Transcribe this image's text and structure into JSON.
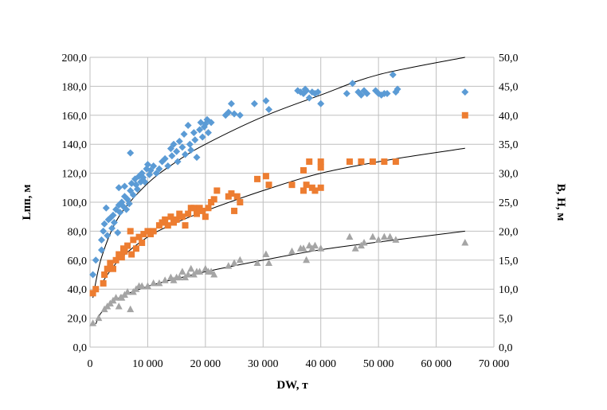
{
  "chart_data": {
    "type": "scatter",
    "xlabel": "DW, т",
    "ylabel_left": "Lпп, м",
    "ylabel_right": "B, H, м",
    "xlim": [
      0,
      70000
    ],
    "ylim_left": [
      0,
      200
    ],
    "ylim_right": [
      0,
      50
    ],
    "grid": "horizontal and vertical",
    "legend": "none",
    "x_ticks": [
      "0",
      "10 000",
      "20 000",
      "30 000",
      "40 000",
      "50 000",
      "60 000",
      "70 000"
    ],
    "y_left_ticks": [
      "0,0",
      "20,0",
      "40,0",
      "60,0",
      "80,0",
      "100,0",
      "120,0",
      "140,0",
      "160,0",
      "180,0",
      "200,0"
    ],
    "y_right_ticks": [
      "0,0",
      "5,0",
      "10,0",
      "15,0",
      "20,0",
      "25,0",
      "30,0",
      "35,0",
      "40,0",
      "45,0",
      "50,0"
    ],
    "series": [
      {
        "marker": "diamond",
        "color": "#5B9BD5",
        "axis": "left",
        "points": [
          [
            500,
            50
          ],
          [
            1000,
            60
          ],
          [
            2000,
            67
          ],
          [
            2000,
            74
          ],
          [
            2300,
            80
          ],
          [
            2500,
            85
          ],
          [
            2800,
            96
          ],
          [
            3000,
            77
          ],
          [
            3200,
            88
          ],
          [
            3500,
            89
          ],
          [
            3800,
            82
          ],
          [
            4000,
            91
          ],
          [
            4200,
            86
          ],
          [
            4500,
            95
          ],
          [
            4800,
            79
          ],
          [
            5000,
            98
          ],
          [
            5000,
            110
          ],
          [
            5200,
            93
          ],
          [
            5500,
            100
          ],
          [
            5800,
            97
          ],
          [
            6000,
            111
          ],
          [
            6000,
            104
          ],
          [
            6300,
            95
          ],
          [
            6500,
            102
          ],
          [
            6800,
            99
          ],
          [
            7000,
            134
          ],
          [
            7000,
            108
          ],
          [
            7200,
            113
          ],
          [
            7500,
            105
          ],
          [
            7800,
            116
          ],
          [
            8000,
            112
          ],
          [
            8200,
            109
          ],
          [
            8500,
            118
          ],
          [
            8800,
            114
          ],
          [
            9000,
            120
          ],
          [
            9200,
            117
          ],
          [
            9500,
            114
          ],
          [
            9800,
            123
          ],
          [
            10000,
            126
          ],
          [
            10300,
            119
          ],
          [
            10500,
            122
          ],
          [
            11000,
            125
          ],
          [
            11500,
            120
          ],
          [
            12000,
            123
          ],
          [
            12500,
            128
          ],
          [
            13000,
            130
          ],
          [
            13500,
            125
          ],
          [
            14000,
            137
          ],
          [
            14200,
            132
          ],
          [
            14500,
            140
          ],
          [
            15000,
            135
          ],
          [
            15200,
            128
          ],
          [
            15500,
            142
          ],
          [
            16000,
            138
          ],
          [
            16300,
            147
          ],
          [
            16500,
            133
          ],
          [
            17000,
            153
          ],
          [
            17300,
            140
          ],
          [
            17500,
            136
          ],
          [
            18000,
            148
          ],
          [
            18200,
            143
          ],
          [
            18500,
            131
          ],
          [
            19000,
            150
          ],
          [
            19200,
            155
          ],
          [
            19500,
            145
          ],
          [
            19800,
            152
          ],
          [
            20000,
            154
          ],
          [
            20300,
            157
          ],
          [
            20500,
            148
          ],
          [
            21000,
            155
          ],
          [
            23500,
            160
          ],
          [
            24000,
            162
          ],
          [
            24500,
            168
          ],
          [
            25000,
            161
          ],
          [
            26000,
            160
          ],
          [
            28500,
            168
          ],
          [
            30500,
            170
          ],
          [
            31000,
            164
          ],
          [
            36000,
            177
          ],
          [
            36500,
            176
          ],
          [
            37000,
            175
          ],
          [
            37300,
            178
          ],
          [
            37500,
            177
          ],
          [
            38000,
            172
          ],
          [
            38500,
            176
          ],
          [
            39000,
            175
          ],
          [
            39500,
            176
          ],
          [
            40000,
            168
          ],
          [
            44500,
            175
          ],
          [
            45500,
            182
          ],
          [
            46500,
            176
          ],
          [
            47000,
            174
          ],
          [
            47500,
            177
          ],
          [
            48000,
            175
          ],
          [
            49500,
            177
          ],
          [
            50000,
            175
          ],
          [
            50500,
            174
          ],
          [
            51000,
            175
          ],
          [
            51500,
            175
          ],
          [
            52500,
            188
          ],
          [
            53000,
            176
          ],
          [
            53300,
            178
          ],
          [
            65000,
            176
          ]
        ]
      },
      {
        "marker": "square",
        "color": "#ED7D31",
        "axis": "right",
        "points": [
          [
            500,
            9.3
          ],
          [
            1000,
            10
          ],
          [
            2300,
            11
          ],
          [
            2500,
            12.5
          ],
          [
            3000,
            13.5
          ],
          [
            3500,
            14.5
          ],
          [
            4000,
            13.5
          ],
          [
            4500,
            15
          ],
          [
            5000,
            16
          ],
          [
            5500,
            15.5
          ],
          [
            5800,
            17
          ],
          [
            6000,
            16.5
          ],
          [
            6500,
            17.5
          ],
          [
            7000,
            20
          ],
          [
            7200,
            16
          ],
          [
            7500,
            18.5
          ],
          [
            8000,
            17
          ],
          [
            8500,
            19
          ],
          [
            9000,
            18
          ],
          [
            9300,
            19.5
          ],
          [
            10000,
            20
          ],
          [
            10500,
            19.5
          ],
          [
            11000,
            20
          ],
          [
            12000,
            21
          ],
          [
            12500,
            21.5
          ],
          [
            13000,
            22
          ],
          [
            13500,
            21
          ],
          [
            14000,
            22.5
          ],
          [
            14500,
            21.5
          ],
          [
            15000,
            22
          ],
          [
            15500,
            23
          ],
          [
            16000,
            22.5
          ],
          [
            16500,
            21
          ],
          [
            17000,
            23
          ],
          [
            17500,
            24
          ],
          [
            18000,
            24
          ],
          [
            18500,
            23
          ],
          [
            19000,
            24
          ],
          [
            19500,
            23.5
          ],
          [
            20000,
            22.5
          ],
          [
            20500,
            24
          ],
          [
            21000,
            25
          ],
          [
            21500,
            25.5
          ],
          [
            22000,
            27
          ],
          [
            24000,
            26
          ],
          [
            24500,
            26.5
          ],
          [
            25000,
            23.5
          ],
          [
            25500,
            26
          ],
          [
            26000,
            25
          ],
          [
            29000,
            29
          ],
          [
            30500,
            29.5
          ],
          [
            31000,
            28
          ],
          [
            35000,
            28
          ],
          [
            37000,
            30.5
          ],
          [
            37000,
            27
          ],
          [
            37500,
            28
          ],
          [
            38000,
            32
          ],
          [
            38500,
            27.5
          ],
          [
            39000,
            27
          ],
          [
            40000,
            27.5
          ],
          [
            40000,
            31
          ],
          [
            40000,
            32
          ],
          [
            45000,
            32
          ],
          [
            47000,
            32
          ],
          [
            49000,
            32
          ],
          [
            51000,
            32
          ],
          [
            53000,
            32
          ],
          [
            65000,
            40
          ]
        ]
      },
      {
        "marker": "triangle",
        "color": "#A5A5A5",
        "axis": "right",
        "points": [
          [
            500,
            4.1
          ],
          [
            1500,
            5
          ],
          [
            2500,
            6.5
          ],
          [
            3000,
            7
          ],
          [
            3500,
            7.5
          ],
          [
            4000,
            8
          ],
          [
            4500,
            8.5
          ],
          [
            5000,
            7
          ],
          [
            5300,
            8.5
          ],
          [
            5500,
            8.5
          ],
          [
            6000,
            9
          ],
          [
            6500,
            9.5
          ],
          [
            7000,
            6.5
          ],
          [
            7500,
            9.5
          ],
          [
            8000,
            10
          ],
          [
            8500,
            10.5
          ],
          [
            9000,
            10.5
          ],
          [
            10000,
            10.5
          ],
          [
            11000,
            11
          ],
          [
            12000,
            11
          ],
          [
            13000,
            11.5
          ],
          [
            14000,
            12
          ],
          [
            14500,
            11.5
          ],
          [
            15000,
            12
          ],
          [
            15500,
            12
          ],
          [
            16000,
            13
          ],
          [
            16500,
            12
          ],
          [
            17000,
            12.5
          ],
          [
            17500,
            13.5
          ],
          [
            18000,
            12.5
          ],
          [
            18500,
            13
          ],
          [
            19000,
            13
          ],
          [
            20000,
            13.5
          ],
          [
            20500,
            13
          ],
          [
            21000,
            13
          ],
          [
            21500,
            12.5
          ],
          [
            24000,
            14
          ],
          [
            25000,
            14.5
          ],
          [
            26000,
            15
          ],
          [
            29000,
            14.5
          ],
          [
            30500,
            16
          ],
          [
            31000,
            14.5
          ],
          [
            35000,
            16.5
          ],
          [
            36500,
            17
          ],
          [
            37000,
            17
          ],
          [
            37500,
            15
          ],
          [
            38000,
            17.5
          ],
          [
            38500,
            17
          ],
          [
            39000,
            17.5
          ],
          [
            40000,
            17
          ],
          [
            45000,
            19
          ],
          [
            46000,
            17
          ],
          [
            47000,
            17.5
          ],
          [
            47500,
            18
          ],
          [
            49000,
            19
          ],
          [
            50000,
            18.5
          ],
          [
            51000,
            19
          ],
          [
            52000,
            19
          ],
          [
            53000,
            18.5
          ],
          [
            65000,
            18
          ]
        ]
      }
    ],
    "trendlines": [
      {
        "color": "#000000",
        "axis": "left",
        "points": [
          [
            500,
            34
          ],
          [
            2000,
            62
          ],
          [
            5000,
            90
          ],
          [
            10000,
            113
          ],
          [
            15000,
            128
          ],
          [
            20000,
            140
          ],
          [
            30000,
            159
          ],
          [
            40000,
            174
          ],
          [
            50000,
            188
          ],
          [
            65000,
            200
          ]
        ]
      },
      {
        "color": "#000000",
        "axis": "right",
        "points": [
          [
            2000,
            11
          ],
          [
            5000,
            15
          ],
          [
            10000,
            19
          ],
          [
            15000,
            21.5
          ],
          [
            20000,
            23.5
          ],
          [
            30000,
            27
          ],
          [
            40000,
            30
          ],
          [
            53000,
            32.5
          ],
          [
            65000,
            34.3
          ]
        ]
      },
      {
        "color": "#000000",
        "axis": "right",
        "points": [
          [
            1000,
            4
          ],
          [
            2000,
            6
          ],
          [
            5000,
            8.5
          ],
          [
            10000,
            10.5
          ],
          [
            15000,
            11.8
          ],
          [
            20000,
            13
          ],
          [
            30000,
            15
          ],
          [
            40000,
            16.8
          ],
          [
            53000,
            18.5
          ],
          [
            65000,
            20
          ]
        ]
      }
    ]
  }
}
